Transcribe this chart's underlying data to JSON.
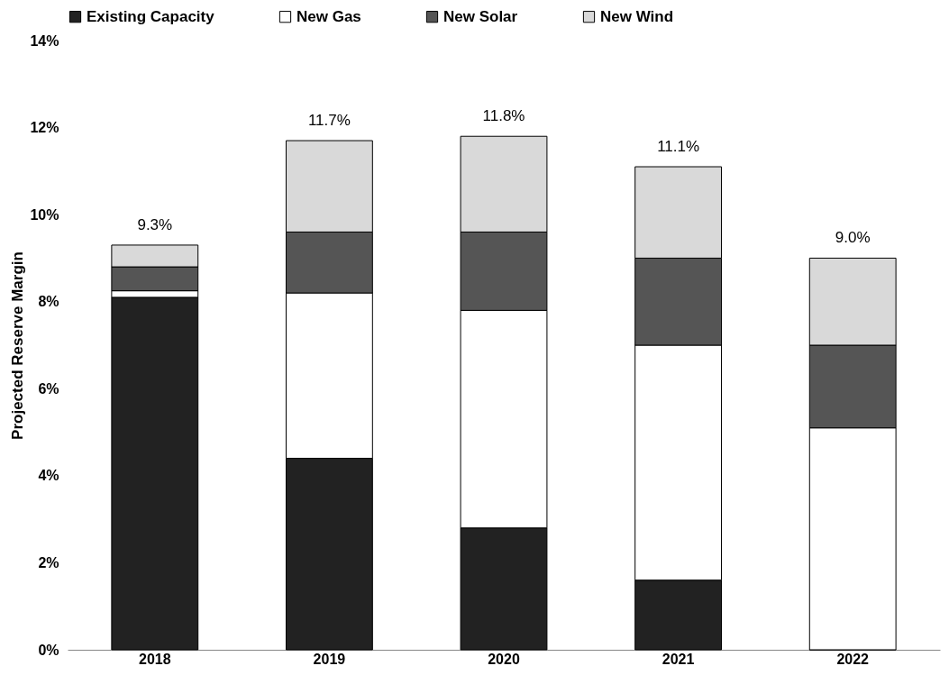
{
  "chart_data": {
    "type": "bar",
    "stacked": true,
    "ylabel": "Projected Reserve Margin",
    "categories": [
      "2018",
      "2019",
      "2020",
      "2021",
      "2022"
    ],
    "series": [
      {
        "name": "Existing Capacity",
        "color": "#222222",
        "values": [
          8.1,
          4.4,
          2.8,
          1.6,
          0
        ]
      },
      {
        "name": "New Gas",
        "color": "#ffffff",
        "values": [
          0.15,
          3.8,
          5.0,
          5.4,
          5.1
        ]
      },
      {
        "name": "New Solar",
        "color": "#555555",
        "values": [
          0.55,
          1.4,
          1.8,
          2.0,
          1.9
        ]
      },
      {
        "name": "New Wind",
        "color": "#d9d9d9",
        "values": [
          0.5,
          2.1,
          2.2,
          2.1,
          2.0
        ]
      }
    ],
    "totals": [
      "9.3%",
      "11.7%",
      "11.8%",
      "11.1%",
      "9.0%"
    ],
    "ylim": [
      0,
      14
    ],
    "yticks": [
      {
        "value": 0,
        "label": "0%"
      },
      {
        "value": 2,
        "label": "2%"
      },
      {
        "value": 4,
        "label": "4%"
      },
      {
        "value": 6,
        "label": "6%"
      },
      {
        "value": 8,
        "label": "8%"
      },
      {
        "value": 10,
        "label": "10%"
      },
      {
        "value": 12,
        "label": "12%"
      },
      {
        "value": 14,
        "label": "14%"
      }
    ],
    "grid": false,
    "legend": "top"
  }
}
